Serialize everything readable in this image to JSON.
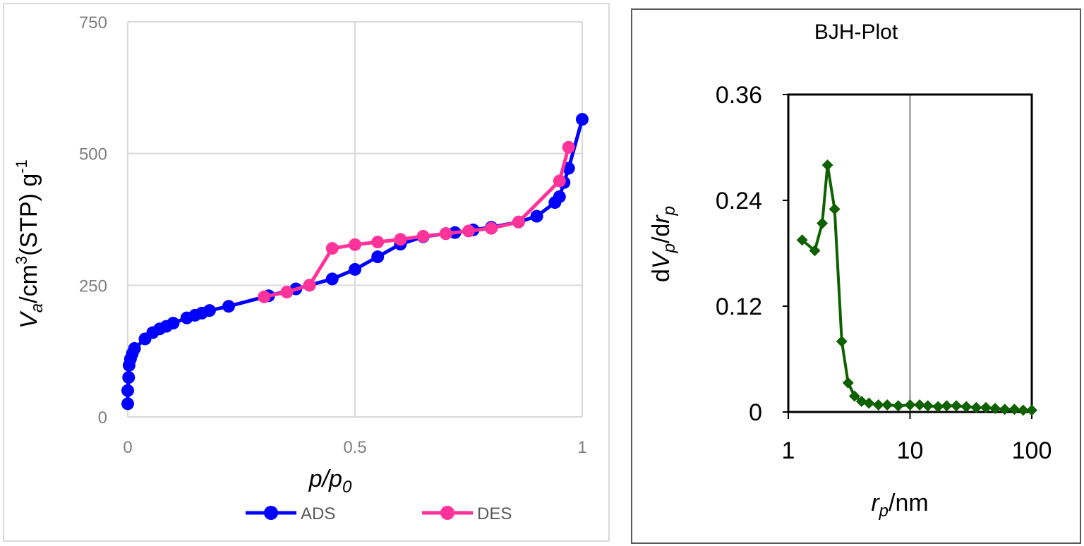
{
  "chart_data": [
    {
      "type": "line",
      "title": "",
      "xlabel": {
        "base": "p/p",
        "sub": "0"
      },
      "ylabel": {
        "v": "V",
        "sub": "a",
        "mid": "/cm",
        "sup": "3",
        "tail": "(STP) g",
        "sup2": "-1"
      },
      "xlim": [
        0,
        1
      ],
      "ylim": [
        0,
        750
      ],
      "xticks": [
        0,
        0.5,
        1
      ],
      "xtick_labels": [
        "0",
        "0.5",
        "1"
      ],
      "yticks": [
        0,
        250,
        500,
        750
      ],
      "ytick_labels": [
        "0",
        "250",
        "500",
        "750"
      ],
      "grid": true,
      "legend": "bottom",
      "series": [
        {
          "name": "ADS",
          "color": "#0000ff",
          "marker": "circle",
          "x": [
            0.0,
            0.0,
            0.002,
            0.003,
            0.006,
            0.01,
            0.015,
            0.038,
            0.055,
            0.07,
            0.085,
            0.1,
            0.13,
            0.148,
            0.163,
            0.18,
            0.222,
            0.31,
            0.37,
            0.4,
            0.45,
            0.5,
            0.55,
            0.6,
            0.65,
            0.7,
            0.72,
            0.76,
            0.8,
            0.86,
            0.9,
            0.94,
            0.95,
            0.96,
            0.97,
            1.0
          ],
          "y": [
            25,
            50,
            75,
            98,
            110,
            120,
            130,
            148,
            160,
            167,
            172,
            178,
            188,
            193,
            197,
            202,
            210,
            230,
            243,
            250,
            262,
            280,
            304,
            328,
            342,
            348,
            350,
            355,
            360,
            370,
            381,
            407,
            418,
            445,
            472,
            565
          ]
        },
        {
          "name": "DES",
          "color": "#ff3399",
          "marker": "circle",
          "x": [
            0.3,
            0.35,
            0.4,
            0.45,
            0.5,
            0.55,
            0.6,
            0.65,
            0.7,
            0.75,
            0.8,
            0.86,
            0.95,
            0.97
          ],
          "y": [
            228,
            237,
            250,
            320,
            327,
            332,
            337,
            343,
            348,
            353,
            358,
            370,
            448,
            512
          ]
        }
      ]
    },
    {
      "type": "line",
      "title": "BJH-Plot",
      "xlabel": {
        "r": "r",
        "sub": "p",
        "tail": "/nm"
      },
      "ylabel": {
        "d1": "d",
        "v": "V",
        "vsub": "p",
        "d2": "/d",
        "r": "r",
        "rsub": "p"
      },
      "xscale": "log",
      "xlim": [
        1,
        100
      ],
      "ylim": [
        0,
        0.36
      ],
      "xticks": [
        1,
        10,
        100
      ],
      "xtick_labels": [
        "1",
        "10",
        "100"
      ],
      "yticks": [
        0,
        0.12,
        0.24,
        0.36
      ],
      "ytick_labels": [
        "0",
        "0.12",
        "0.24",
        "0.36"
      ],
      "grid": true,
      "legend": "none",
      "series": [
        {
          "name": "",
          "color": "#0f6100",
          "marker": "diamond",
          "x": [
            1.3,
            1.65,
            1.9,
            2.1,
            2.4,
            2.75,
            3.1,
            3.5,
            4.0,
            4.6,
            5.5,
            6.5,
            8.0,
            10.0,
            12.0,
            14.0,
            17.0,
            20.0,
            24.0,
            29.0,
            35.0,
            42.0,
            50.0,
            60.0,
            72.0,
            85.0,
            100.0
          ],
          "y": [
            0.195,
            0.183,
            0.214,
            0.28,
            0.23,
            0.08,
            0.033,
            0.018,
            0.012,
            0.01,
            0.008,
            0.008,
            0.007,
            0.008,
            0.008,
            0.007,
            0.006,
            0.007,
            0.007,
            0.006,
            0.005,
            0.005,
            0.004,
            0.003,
            0.003,
            0.002,
            0.002
          ]
        }
      ]
    }
  ]
}
